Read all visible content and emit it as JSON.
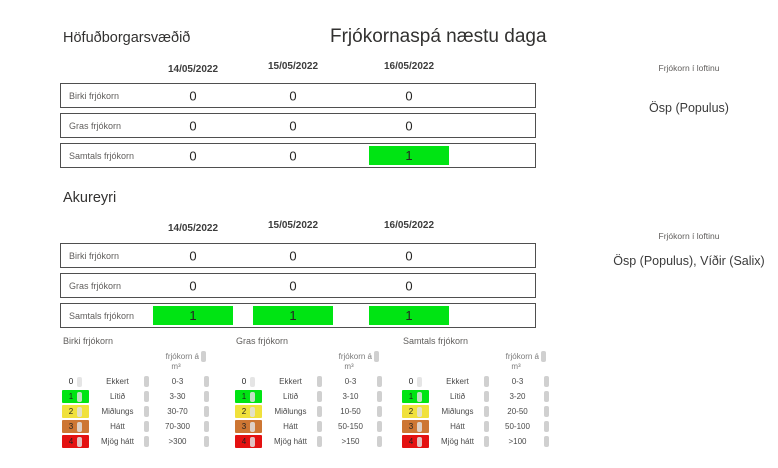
{
  "title": "Frjókornaspá næstu daga",
  "dates": [
    "14/05/2022",
    "15/05/2022",
    "16/05/2022"
  ],
  "air_title": "Frjókorn í loftinu",
  "colors": {
    "green": "#00e413",
    "yellow": "#f0e13c",
    "orange": "#cd7633",
    "red": "#e41111"
  },
  "sections": [
    {
      "name": "Höfuðborgarsvæðið",
      "air_value": "Ösp (Populus)",
      "rows": [
        {
          "label": "Birki frjókorn",
          "values": [
            "0",
            "0",
            "0"
          ]
        },
        {
          "label": "Gras frjókorn",
          "values": [
            "0",
            "0",
            "0"
          ]
        },
        {
          "label": "Samtals frjókorn",
          "values": [
            "0",
            "0",
            "1"
          ]
        }
      ]
    },
    {
      "name": "Akureyri",
      "air_value": "Ösp (Populus), Víðir (Salix)",
      "rows": [
        {
          "label": "Birki frjókorn",
          "values": [
            "0",
            "0",
            "0"
          ]
        },
        {
          "label": "Gras frjókorn",
          "values": [
            "0",
            "0",
            "0"
          ]
        },
        {
          "label": "Samtals frjókorn",
          "values": [
            "1",
            "1",
            "1"
          ]
        }
      ]
    }
  ],
  "legends": [
    {
      "title": "Birki frjókorn",
      "unit_line1": "frjókorn á",
      "unit_line2": "m³",
      "rows": [
        {
          "level": "0",
          "name": "Ekkert",
          "range": "0-3",
          "color": "none"
        },
        {
          "level": "1",
          "name": "Lítið",
          "range": "3-30",
          "color": "#00e413"
        },
        {
          "level": "2",
          "name": "Miðlungs",
          "range": "30-70",
          "color": "#f0e13c"
        },
        {
          "level": "3",
          "name": "Hátt",
          "range": "70-300",
          "color": "#cd7633"
        },
        {
          "level": "4",
          "name": "Mjög hátt",
          "range": ">300",
          "color": "#e41111"
        }
      ]
    },
    {
      "title": "Gras frjókorn",
      "unit_line1": "frjókorn á",
      "unit_line2": "m³",
      "rows": [
        {
          "level": "0",
          "name": "Ekkert",
          "range": "0-3",
          "color": "none"
        },
        {
          "level": "1",
          "name": "Lítið",
          "range": "3-10",
          "color": "#00e413"
        },
        {
          "level": "2",
          "name": "Miðlungs",
          "range": "10-50",
          "color": "#f0e13c"
        },
        {
          "level": "3",
          "name": "Hátt",
          "range": "50-150",
          "color": "#cd7633"
        },
        {
          "level": "4",
          "name": "Mjög hátt",
          "range": ">150",
          "color": "#e41111"
        }
      ]
    },
    {
      "title": "Samtals frjókorn",
      "unit_line1": "frjókorn á",
      "unit_line2": "m³",
      "rows": [
        {
          "level": "0",
          "name": "Ekkert",
          "range": "0-3",
          "color": "none"
        },
        {
          "level": "1",
          "name": "Lítið",
          "range": "3-20",
          "color": "#00e413"
        },
        {
          "level": "2",
          "name": "Miðlungs",
          "range": "20-50",
          "color": "#f0e13c"
        },
        {
          "level": "3",
          "name": "Hátt",
          "range": "50-100",
          "color": "#cd7633"
        },
        {
          "level": "4",
          "name": "Mjög hátt",
          "range": ">100",
          "color": "#e41111"
        }
      ]
    }
  ]
}
